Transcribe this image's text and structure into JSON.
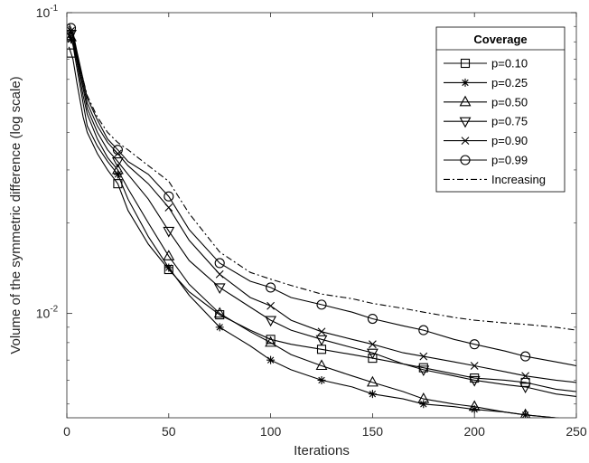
{
  "chart_data": {
    "type": "line",
    "title": "",
    "xlabel": "Iterations",
    "ylabel": "Volume of the symmetric difference (log scale)",
    "xlim": [
      0,
      250
    ],
    "ylim": [
      0.0045,
      0.1
    ],
    "yscale": "log",
    "x_ticks": [
      "0",
      "50",
      "100",
      "150",
      "200",
      "250"
    ],
    "y_ticks": [
      {
        "value": 0.1,
        "base": "10",
        "exp": "-1"
      },
      {
        "value": 0.01,
        "base": "10",
        "exp": "-2"
      }
    ],
    "grid": false,
    "legend": {
      "title": "Coverage",
      "position": "top-right"
    },
    "series": [
      {
        "name": "p=0.10",
        "marker": "square",
        "dash": "solid",
        "x": [
          1,
          3,
          5,
          8,
          10,
          15,
          20,
          25,
          30,
          40,
          50,
          60,
          75,
          90,
          100,
          110,
          125,
          140,
          150,
          165,
          175,
          190,
          200,
          215,
          225,
          240,
          250
        ],
        "y": [
          0.077,
          0.07,
          0.058,
          0.045,
          0.04,
          0.034,
          0.03,
          0.027,
          0.022,
          0.017,
          0.014,
          0.0118,
          0.0099,
          0.0088,
          0.0082,
          0.0079,
          0.0076,
          0.0073,
          0.0071,
          0.0068,
          0.0066,
          0.0063,
          0.0061,
          0.006,
          0.0059,
          0.0056,
          0.0055
        ]
      },
      {
        "name": "p=0.25",
        "marker": "star",
        "dash": "solid",
        "x": [
          1,
          3,
          5,
          8,
          10,
          15,
          20,
          25,
          30,
          40,
          50,
          60,
          75,
          90,
          100,
          110,
          125,
          140,
          150,
          165,
          175,
          190,
          200,
          215,
          225,
          240,
          250
        ],
        "y": [
          0.085,
          0.078,
          0.065,
          0.05,
          0.042,
          0.036,
          0.032,
          0.029,
          0.024,
          0.018,
          0.0142,
          0.0115,
          0.009,
          0.0078,
          0.007,
          0.0065,
          0.006,
          0.0057,
          0.0054,
          0.0052,
          0.005,
          0.0049,
          0.0048,
          0.0047,
          0.0046,
          0.0045,
          0.0044
        ]
      },
      {
        "name": "p=0.50",
        "marker": "triangle-up",
        "dash": "solid",
        "x": [
          1,
          3,
          5,
          8,
          10,
          15,
          20,
          25,
          30,
          40,
          50,
          60,
          75,
          90,
          100,
          110,
          125,
          140,
          150,
          165,
          175,
          190,
          200,
          215,
          225,
          240,
          250
        ],
        "y": [
          0.086,
          0.08,
          0.068,
          0.053,
          0.046,
          0.038,
          0.033,
          0.03,
          0.026,
          0.02,
          0.0155,
          0.0125,
          0.01,
          0.0087,
          0.008,
          0.0073,
          0.0067,
          0.0062,
          0.0059,
          0.0055,
          0.0052,
          0.005,
          0.0049,
          0.0047,
          0.0046,
          0.0045,
          0.0044
        ]
      },
      {
        "name": "p=0.75",
        "marker": "triangle-down",
        "dash": "solid",
        "x": [
          1,
          3,
          5,
          8,
          10,
          15,
          20,
          25,
          30,
          40,
          50,
          60,
          75,
          90,
          100,
          110,
          125,
          140,
          150,
          165,
          175,
          190,
          200,
          215,
          225,
          240,
          250
        ],
        "y": [
          0.088,
          0.082,
          0.07,
          0.056,
          0.048,
          0.04,
          0.035,
          0.032,
          0.029,
          0.024,
          0.0188,
          0.015,
          0.0122,
          0.0105,
          0.0095,
          0.0088,
          0.0082,
          0.0077,
          0.0074,
          0.0068,
          0.0065,
          0.0062,
          0.006,
          0.0058,
          0.0057,
          0.0054,
          0.0053
        ]
      },
      {
        "name": "p=0.90",
        "marker": "cross",
        "dash": "solid",
        "x": [
          1,
          3,
          5,
          8,
          10,
          15,
          20,
          25,
          30,
          40,
          50,
          60,
          75,
          90,
          100,
          110,
          125,
          140,
          150,
          165,
          175,
          190,
          200,
          215,
          225,
          240,
          250
        ],
        "y": [
          0.09,
          0.084,
          0.072,
          0.058,
          0.05,
          0.042,
          0.037,
          0.034,
          0.031,
          0.027,
          0.0225,
          0.0175,
          0.0135,
          0.0113,
          0.0106,
          0.0095,
          0.0087,
          0.0082,
          0.0079,
          0.0074,
          0.0072,
          0.0069,
          0.0067,
          0.0064,
          0.0062,
          0.006,
          0.0059
        ]
      },
      {
        "name": "p=0.99",
        "marker": "circle",
        "dash": "solid",
        "x": [
          1,
          3,
          5,
          8,
          10,
          15,
          20,
          25,
          30,
          40,
          50,
          60,
          75,
          90,
          100,
          110,
          125,
          140,
          150,
          165,
          175,
          190,
          200,
          215,
          225,
          240,
          250
        ],
        "y": [
          0.092,
          0.086,
          0.074,
          0.06,
          0.052,
          0.044,
          0.038,
          0.035,
          0.032,
          0.029,
          0.0245,
          0.019,
          0.0147,
          0.0128,
          0.0122,
          0.0113,
          0.0107,
          0.0101,
          0.0096,
          0.0091,
          0.0088,
          0.0082,
          0.0079,
          0.0075,
          0.0072,
          0.0069,
          0.0067
        ]
      },
      {
        "name": "Increasing",
        "marker": "none",
        "dash": "dashdot",
        "x": [
          1,
          3,
          5,
          8,
          10,
          15,
          20,
          25,
          30,
          40,
          50,
          60,
          75,
          90,
          100,
          110,
          125,
          140,
          150,
          165,
          175,
          190,
          200,
          215,
          225,
          240,
          250
        ],
        "y": [
          0.088,
          0.083,
          0.072,
          0.06,
          0.053,
          0.045,
          0.04,
          0.037,
          0.035,
          0.031,
          0.0275,
          0.0215,
          0.016,
          0.0137,
          0.013,
          0.0124,
          0.0116,
          0.0112,
          0.0108,
          0.0104,
          0.0101,
          0.0097,
          0.0095,
          0.0093,
          0.0092,
          0.009,
          0.0088
        ]
      }
    ],
    "marker_x": [
      2,
      25,
      50,
      75,
      100,
      125,
      150,
      175,
      200,
      225
    ]
  }
}
